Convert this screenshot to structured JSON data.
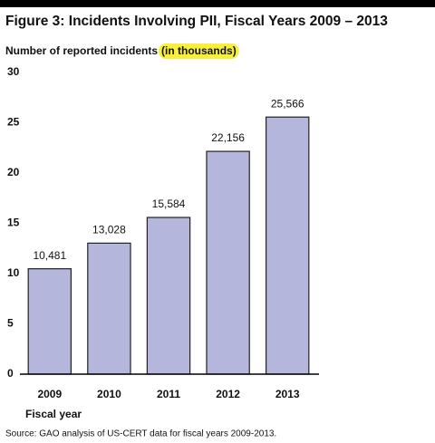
{
  "chart_data": {
    "type": "bar",
    "title": "Figure 3: Incidents Involving PII, Fiscal Years 2009 – 2013",
    "y_label": "Number of reported incidents",
    "y_label_highlight": "(in thousands)",
    "x_label": "Fiscal year",
    "source": "Source: GAO analysis of US-CERT data for fiscal years 2009-2013.",
    "categories": [
      "2009",
      "2010",
      "2011",
      "2012",
      "2013"
    ],
    "values": [
      10.481,
      13.028,
      15.584,
      22.156,
      25.566
    ],
    "value_labels": [
      "10,481",
      "13,028",
      "15,584",
      "22,156",
      "25,566"
    ],
    "color": "#b4b6dc",
    "ylim": [
      0,
      30
    ],
    "yticks": [
      0,
      5,
      10,
      15,
      20,
      25,
      30
    ],
    "grid": false
  }
}
